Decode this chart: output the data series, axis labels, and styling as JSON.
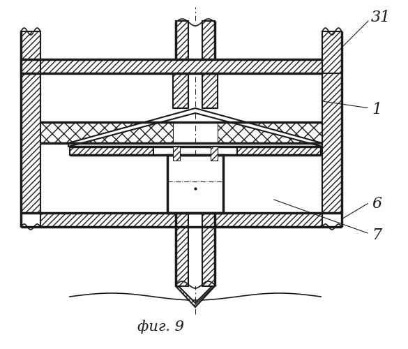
{
  "title": "фиг. 9",
  "bg_color": "#ffffff",
  "lc": "#1a1a1a",
  "label_fontsize": 16
}
